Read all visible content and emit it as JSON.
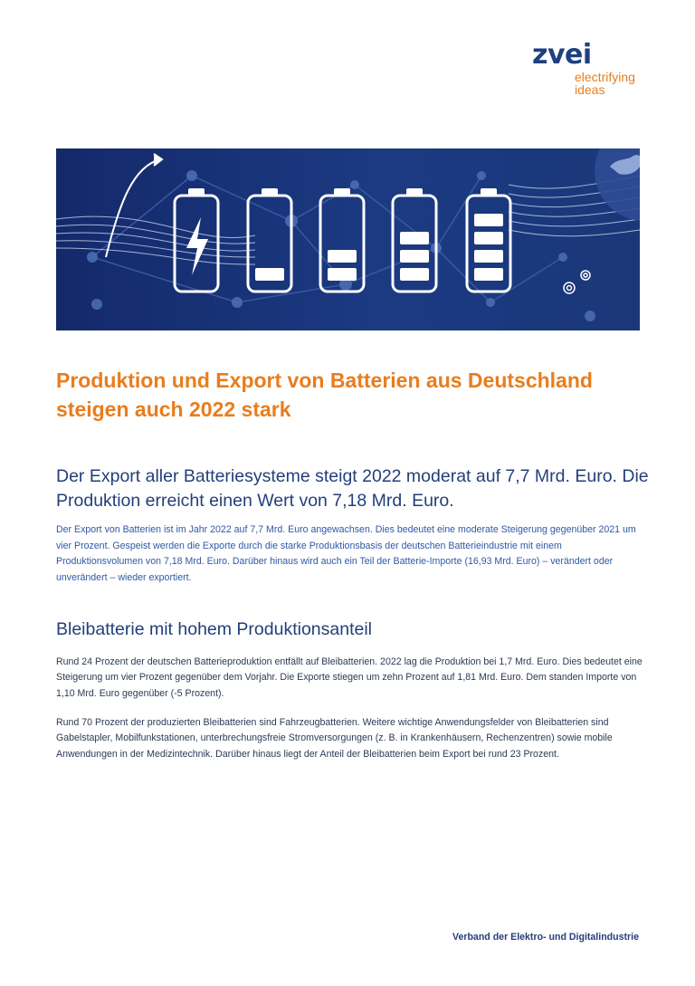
{
  "logo": {
    "word": "zvei",
    "tagline_1": "electrifying",
    "tagline_2": "ideas"
  },
  "colors": {
    "brand_blue": "#1e3f80",
    "accent_orange": "#e87d1e",
    "intro_blue": "#2f58a6",
    "hero_bg": "#1a3778"
  },
  "hero": {
    "icons": [
      "arrow-icon",
      "battery-charging-icon",
      "battery-icon",
      "battery-icon",
      "battery-icon",
      "battery-icon",
      "globe-icon",
      "gear-icon"
    ],
    "battery_levels": [
      1,
      2,
      3,
      4
    ]
  },
  "title": "Produktion und Export von Batterien aus Deutschland steigen auch 2022 stark",
  "lead": "Der Export aller Batteriesysteme steigt 2022 moderat auf 7,7 Mrd. Euro. Die Produktion erreicht einen Wert von 7,18 Mrd. Euro.",
  "intro": "Der Export von Batterien ist im Jahr 2022 auf 7,7 Mrd. Euro angewachsen. Dies bedeutet eine moderate Steigerung gegenüber 2021 um vier Prozent. Gespeist werden die Exporte durch die starke Produktionsbasis der deutschen Batterieindustrie mit einem Produktionsvolumen von 7,18 Mrd. Euro. Darüber hinaus wird auch ein Teil der Batterie-Importe (16,93 Mrd. Euro) – verändert oder unverändert – wieder exportiert.",
  "section_heading": "Bleibatterie mit hohem Produktionsanteil",
  "paragraph_1": "Rund 24 Prozent der deutschen Batterieproduktion entfällt auf Bleibatterien. 2022 lag die Produktion bei 1,7 Mrd. Euro. Dies bedeutet eine Steigerung um vier Prozent gegenüber dem Vorjahr. Die Exporte stiegen um zehn Prozent auf 1,81 Mrd. Euro. Dem standen Importe von 1,10 Mrd. Euro gegenüber (-5 Prozent).",
  "paragraph_2": "Rund 70 Prozent der produzierten Bleibatterien sind Fahrzeugbatterien. Weitere wichtige Anwendungsfelder von Bleibatterien sind Gabelstapler, Mobilfunkstationen, unterbrechungsfreie Stromversorgungen (z. B. in Krankenhäusern, Rechenzentren) sowie mobile Anwendungen in der Medizintechnik. Darüber hinaus liegt der Anteil der Bleibatterien beim Export bei rund 23 Prozent.",
  "footer": "Verband der Elektro- und Digitalindustrie"
}
